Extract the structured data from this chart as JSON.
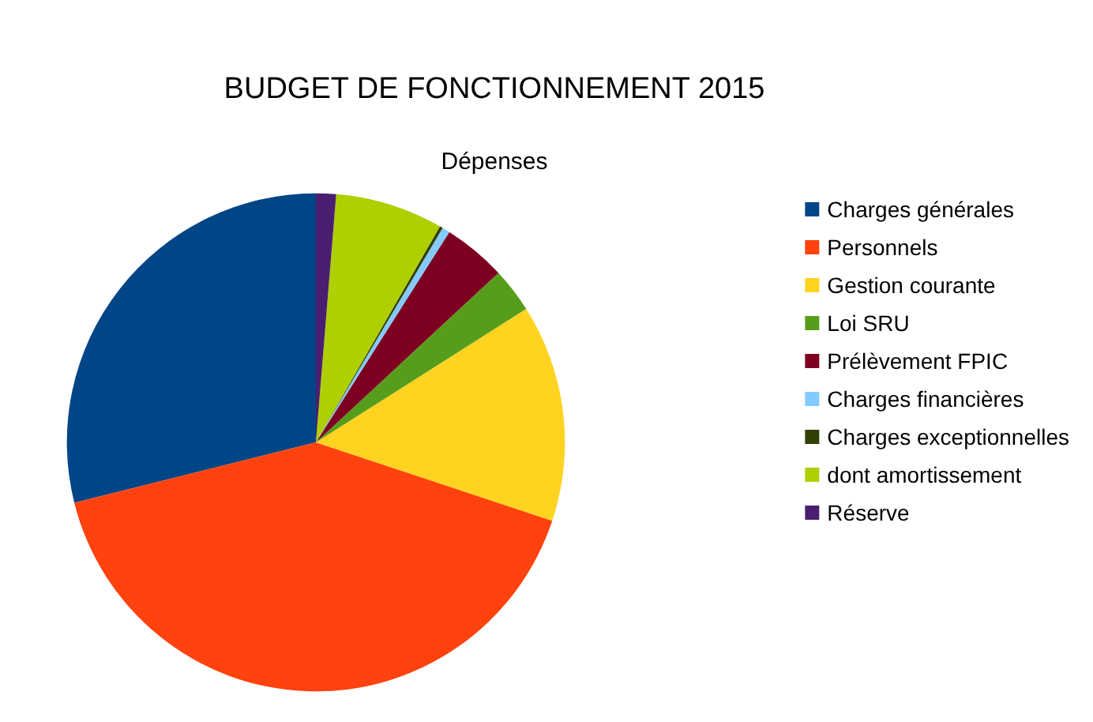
{
  "chart_data": {
    "type": "pie",
    "title": "BUDGET DE FONCTIONNEMENT 2015",
    "subtitle": "Dépenses",
    "categories": [
      "Charges générales",
      "Personnels",
      "Gestion courante",
      "Loi SRU",
      "Prélèvement FPIC",
      "Charges financières",
      "Charges exceptionnelles",
      "dont amortissement",
      "Réserve"
    ],
    "values": [
      28.9,
      41.0,
      14.1,
      2.9,
      4.1,
      0.5,
      0.2,
      7.0,
      1.3
    ],
    "colors": [
      "#004586",
      "#ff420e",
      "#ffd320",
      "#579d1c",
      "#7e0021",
      "#83caff",
      "#314004",
      "#aecf00",
      "#4b1f6f"
    ],
    "legend": "right"
  }
}
